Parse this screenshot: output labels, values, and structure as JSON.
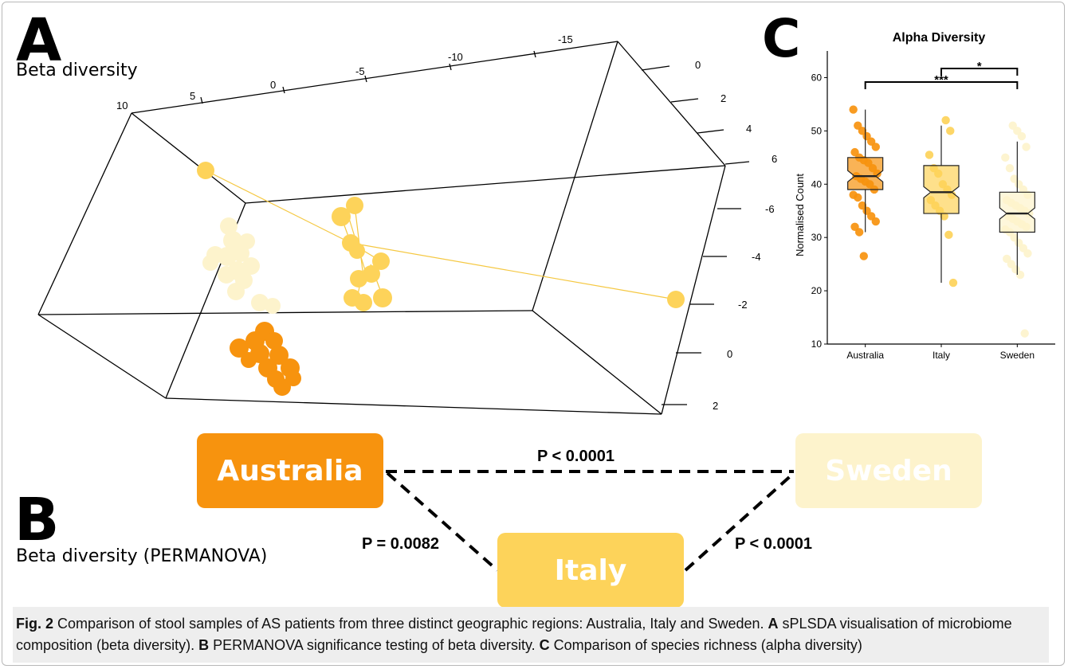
{
  "panel_a": {
    "letter": "A",
    "subtitle": "Beta diversity",
    "axis_top_ticks": [
      "10",
      "5",
      "0",
      "-5",
      "-10",
      "-15"
    ],
    "axis_right_upper_ticks": [
      "0",
      "2",
      "4",
      "6"
    ],
    "axis_right_lower_ticks": [
      "-6",
      "-4",
      "-2",
      "0",
      "2"
    ]
  },
  "panel_b": {
    "letter": "B",
    "subtitle": "Beta diversity (PERMANOVA)",
    "regions": [
      {
        "label": "Australia",
        "color": "#f7930e"
      },
      {
        "label": "Sweden",
        "color": "#fdf3cc"
      },
      {
        "label": "Italy",
        "color": "#fdd35a"
      }
    ],
    "p_values": {
      "australia_sweden": "P < 0.0001",
      "australia_italy": "P = 0.0082",
      "italy_sweden": "P < 0.0001"
    }
  },
  "panel_c": {
    "letter": "C",
    "title": "Alpha Diversity",
    "ylabel": "Normalised Count",
    "categories": [
      "Australia",
      "Italy",
      "Sweden"
    ],
    "yticks": [
      10,
      20,
      30,
      40,
      50,
      60
    ],
    "significance": [
      {
        "groups": [
          "Australia",
          "Sweden"
        ],
        "label": "***"
      },
      {
        "groups": [
          "Italy",
          "Sweden"
        ],
        "label": "*"
      }
    ]
  },
  "chart_data": {
    "type": "box",
    "title": "Alpha Diversity",
    "xlabel": "",
    "ylabel": "Normalised Count",
    "ylim": [
      10,
      65
    ],
    "categories": [
      "Australia",
      "Italy",
      "Sweden"
    ],
    "boxes": [
      {
        "category": "Australia",
        "min": 31,
        "q1": 39,
        "median": 41.5,
        "q3": 45,
        "max": 54,
        "color": "#f7930e",
        "points": [
          54,
          51,
          50,
          49,
          48,
          47,
          46,
          45,
          44.5,
          44,
          43,
          42,
          41.5,
          41,
          40.5,
          40,
          39,
          38,
          37.5,
          36,
          35,
          34,
          33,
          32,
          31,
          26.5
        ]
      },
      {
        "category": "Italy",
        "min": 21.5,
        "q1": 34.5,
        "median": 38.5,
        "q3": 43.5,
        "max": 51,
        "color": "#fdd35a",
        "points": [
          52,
          50,
          45.5,
          43,
          42,
          40,
          39,
          38,
          37,
          36,
          35,
          34,
          30.5,
          21.5
        ]
      },
      {
        "category": "Sweden",
        "min": 23,
        "q1": 31,
        "median": 34.5,
        "q3": 38.5,
        "max": 48,
        "color": "#fdf3cc",
        "points": [
          51,
          50,
          49,
          47,
          45,
          43,
          41,
          40,
          39,
          38,
          37,
          36.5,
          36,
          35.5,
          35,
          34.5,
          34,
          33.5,
          33,
          32.5,
          32,
          31.5,
          31,
          30,
          29,
          28,
          27,
          26,
          25,
          24,
          23,
          12
        ]
      }
    ]
  },
  "caption": {
    "fig_label": "Fig. 2",
    "text_1": "Comparison of stool samples of AS patients from three distinct geographic regions: Australia, Italy and Sweden.",
    "label_a": "A",
    "text_a": "sPLSDA visualisation of microbiome composition (beta diversity).",
    "label_b": "B",
    "text_b": "PERMANOVA significance testing of beta diversity.",
    "label_c": "C",
    "text_c": "Comparison of species richness (alpha diversity)"
  }
}
